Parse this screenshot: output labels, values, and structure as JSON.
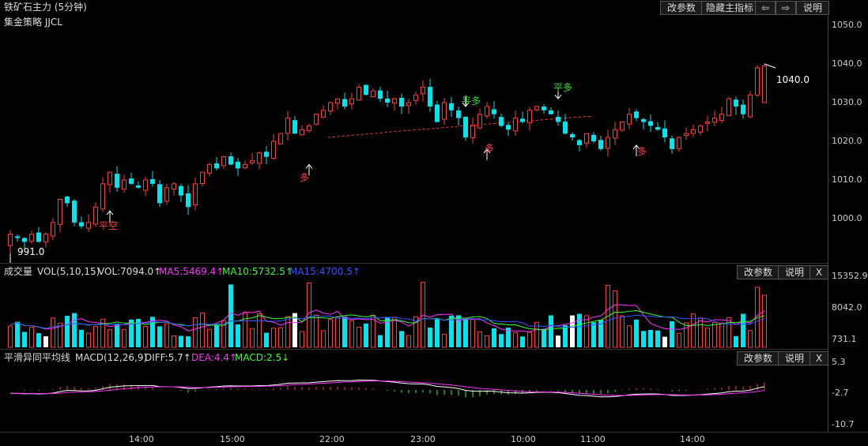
{
  "header": {
    "title": "铁矿石主力 (5分钟)",
    "strategy": "集金策略 JJCL",
    "buttons": {
      "edit": "改参数",
      "hide": "隐藏主指标",
      "prev": "⇦",
      "next": "⇨",
      "help": "说明"
    }
  },
  "price_panel": {
    "y_labels": [
      "1050.0",
      "1040.0",
      "1030.0",
      "1020.0",
      "1010.0",
      "1000.0"
    ],
    "high_label": "1040.0",
    "low_label": "991.0",
    "signals": [
      {
        "text": "平空",
        "color": "#ff3b3b"
      },
      {
        "text": "多",
        "color": "#ff3b3b"
      },
      {
        "text": "平多",
        "color": "#33dd33"
      },
      {
        "text": "多",
        "color": "#ff3b3b"
      },
      {
        "text": "平多",
        "color": "#33dd33"
      },
      {
        "text": "多",
        "color": "#ff3b3b"
      }
    ]
  },
  "volume_panel": {
    "title": "成交量",
    "indicator": "VOL(5,10,15)",
    "vol_value": "VOL:7094.0↑",
    "ma5": "MA5:5469.4↑",
    "ma10": "MA10:5732.5↑",
    "ma15": "MA15:4700.5↑",
    "y_labels": [
      "15352.9",
      "8042.0",
      "731.1"
    ],
    "buttons": {
      "edit": "改参数",
      "help": "说明",
      "close": "X"
    }
  },
  "macd_panel": {
    "title": "平滑异同平均线",
    "indicator": "MACD(12,26,9)",
    "diff": "DIFF:5.7↑",
    "dea": "DEA:4.4↑",
    "macd": "MACD:2.5↓",
    "y_labels": [
      "5.3",
      "-2.7",
      "-10.7"
    ],
    "buttons": {
      "edit": "改参数",
      "help": "说明",
      "close": "X"
    }
  },
  "time_axis": [
    "14:00",
    "15:00",
    "22:00",
    "23:00",
    "10:00",
    "11:00",
    "14:00"
  ],
  "colors": {
    "up": "#ff3b3b",
    "down": "#00e5ee",
    "bg": "#000000",
    "grid": "#333333",
    "ma5": "#ff33ff",
    "ma10": "#33ff33",
    "ma15": "#3355ff",
    "diff": "#ffffff",
    "dea": "#ff33ff"
  },
  "chart_data": {
    "type": "candlestick",
    "x": [
      "14:00",
      "15:00",
      "22:00",
      "23:00",
      "10:00",
      "11:00",
      "14:00"
    ],
    "ylim": [
      991.0,
      1050.0
    ],
    "close_series": [
      996,
      995,
      994,
      996,
      994,
      996,
      999,
      1005,
      1004,
      999,
      998,
      999,
      1003,
      1009,
      1012,
      1008,
      1010,
      1009,
      1008,
      1010,
      1009,
      1004,
      1008,
      1009,
      1006,
      1003,
      1009,
      1012,
      1014,
      1013,
      1016,
      1014,
      1013,
      1014,
      1015,
      1017,
      1016,
      1020,
      1022,
      1026,
      1022,
      1023,
      1024,
      1027,
      1028,
      1030,
      1031,
      1029,
      1031,
      1034,
      1032,
      1033,
      1031,
      1030,
      1031,
      1029,
      1030,
      1032,
      1034,
      1029,
      1025,
      1030,
      1028,
      1026,
      1021,
      1024,
      1027,
      1029,
      1027,
      1024,
      1023,
      1026,
      1025,
      1028,
      1029,
      1028,
      1027,
      1025,
      1022,
      1021,
      1019,
      1022,
      1020,
      1018,
      1021,
      1023,
      1025,
      1027,
      1026,
      1025,
      1024,
      1023,
      1021,
      1018,
      1021,
      1022,
      1023,
      1024,
      1025,
      1026,
      1027,
      1031,
      1029,
      1027,
      1032,
      1039,
      1040
    ]
  }
}
